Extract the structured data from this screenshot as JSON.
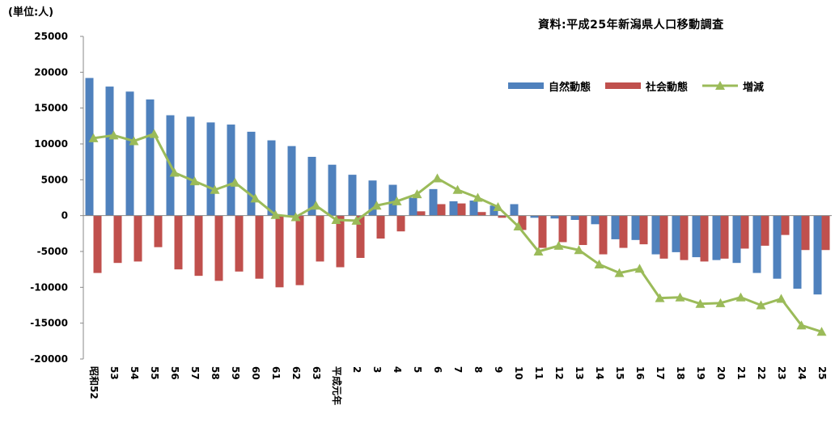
{
  "header": {
    "unit": "(単位:人)",
    "source": "資料:平成25年新潟県人口移動調査"
  },
  "chart_data": {
    "type": "bar",
    "ylim": [
      -20000,
      25000
    ],
    "yticks": [
      25000,
      20000,
      15000,
      10000,
      5000,
      0,
      -5000,
      -10000,
      -15000,
      -20000
    ],
    "grid": false,
    "legend_position": "top-right",
    "categories": [
      "昭和52",
      "53",
      "54",
      "55",
      "56",
      "57",
      "58",
      "59",
      "60",
      "61",
      "62",
      "63",
      "平成元年",
      "2",
      "3",
      "4",
      "5",
      "6",
      "7",
      "8",
      "9",
      "10",
      "11",
      "12",
      "13",
      "14",
      "15",
      "16",
      "17",
      "18",
      "19",
      "20",
      "21",
      "22",
      "23",
      "24",
      "25"
    ],
    "series": [
      {
        "name": "自然動態",
        "type": "bar",
        "color": "#4f81bd",
        "values": [
          19200,
          18000,
          17300,
          16200,
          14000,
          13800,
          13000,
          12700,
          11700,
          10500,
          9700,
          8200,
          7100,
          5700,
          4900,
          4300,
          2500,
          3700,
          2000,
          2100,
          1400,
          1600,
          -300,
          -400,
          -600,
          -1200,
          -3300,
          -3400,
          -5400,
          -5100,
          -5800,
          -6200,
          -6600,
          -8000,
          -8800,
          -10200,
          -11000
        ]
      },
      {
        "name": "社会動態",
        "type": "bar",
        "color": "#c0504d",
        "values": [
          -8000,
          -6600,
          -6400,
          -4400,
          -7500,
          -8400,
          -9100,
          -7800,
          -8800,
          -10000,
          -9700,
          -6400,
          -7200,
          -5900,
          -3200,
          -2200,
          600,
          1600,
          1700,
          500,
          -300,
          -2000,
          -4500,
          -3700,
          -4100,
          -5400,
          -4500,
          -4000,
          -6000,
          -6200,
          -6400,
          -6000,
          -4600,
          -4200,
          -2700,
          -4800,
          -4800
        ]
      },
      {
        "name": "増減",
        "type": "line",
        "color": "#9bbb59",
        "values": [
          10800,
          11200,
          10400,
          11400,
          6000,
          4800,
          3600,
          4600,
          2400,
          100,
          -200,
          1400,
          -600,
          -700,
          1400,
          2000,
          3000,
          5200,
          3600,
          2500,
          1200,
          -1500,
          -5000,
          -4200,
          -4800,
          -6800,
          -8000,
          -7400,
          -11500,
          -11400,
          -12300,
          -12200,
          -11400,
          -12500,
          -11600,
          -15300,
          -16200
        ]
      }
    ]
  }
}
